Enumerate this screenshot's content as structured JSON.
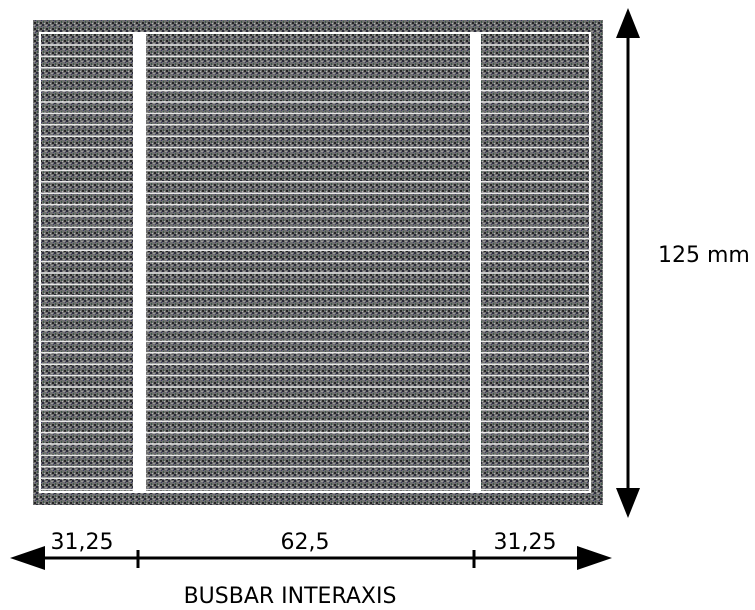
{
  "height_label": "125 mm",
  "dimensions": [
    "31,25",
    "62,5",
    "31,25"
  ],
  "caption": "BUSBAR INTERAXIS"
}
